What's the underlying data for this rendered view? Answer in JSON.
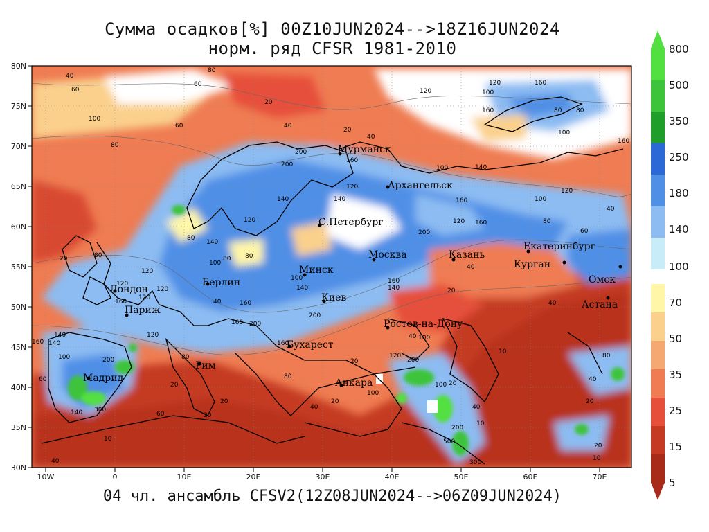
{
  "title": {
    "line1": "Сумма осадков[%] 00Z10JUN2024-->18Z16JUN2024",
    "line2": "норм. ряд CFSR 1981-2010"
  },
  "footer": "04 чл. ансамбль CFSV2(12Z08JUN2024-->06Z09JUN2024)",
  "axes": {
    "lat_labels": [
      "80N",
      "75N",
      "70N",
      "65N",
      "60N",
      "55N",
      "50N",
      "45N",
      "40N",
      "35N",
      "30N"
    ],
    "lon_labels": [
      "10W",
      "0",
      "10E",
      "20E",
      "30E",
      "40E",
      "50E",
      "60E",
      "70E"
    ]
  },
  "colorbar": {
    "upper": [
      {
        "label": "800",
        "color": "#52e040"
      },
      {
        "label": "500",
        "color": "#3ec43a"
      },
      {
        "label": "350",
        "color": "#1f9e2a"
      },
      {
        "label": "250",
        "color": "#2b6ad6"
      },
      {
        "label": "180",
        "color": "#4f8fe6"
      },
      {
        "label": "140",
        "color": "#8cbcf2"
      },
      {
        "label": "",
        "color": "#c8ecf8"
      }
    ],
    "mid_label": "100",
    "lower": [
      {
        "label": "70",
        "color": "#fff6a8"
      },
      {
        "label": "50",
        "color": "#fad08c"
      },
      {
        "label": "35",
        "color": "#f6a872"
      },
      {
        "label": "25",
        "color": "#ef7c52"
      },
      {
        "label": "15",
        "color": "#e6503a"
      },
      {
        "label": "5",
        "color": "#c43a22"
      },
      {
        "label": "",
        "color": "#a82a18"
      }
    ]
  },
  "cities": [
    {
      "name": "Мурманск"
    },
    {
      "name": "Архангельск"
    },
    {
      "name": "С.Петербург"
    },
    {
      "name": "Москва"
    },
    {
      "name": "Казань"
    },
    {
      "name": "Екатеринбург"
    },
    {
      "name": "Курган"
    },
    {
      "name": "Омск"
    },
    {
      "name": "Астана"
    },
    {
      "name": "Минск"
    },
    {
      "name": "Берлин"
    },
    {
      "name": "Лондон"
    },
    {
      "name": "Париж"
    },
    {
      "name": "Киев"
    },
    {
      "name": "Ростов-на-Дону"
    },
    {
      "name": "Бухарест"
    },
    {
      "name": "Рим"
    },
    {
      "name": "Мадрид"
    },
    {
      "name": "Анкара"
    }
  ],
  "contour_labels": [
    "40",
    "60",
    "80",
    "100",
    "120",
    "140",
    "160",
    "200",
    "20",
    "10",
    "500",
    "300"
  ]
}
